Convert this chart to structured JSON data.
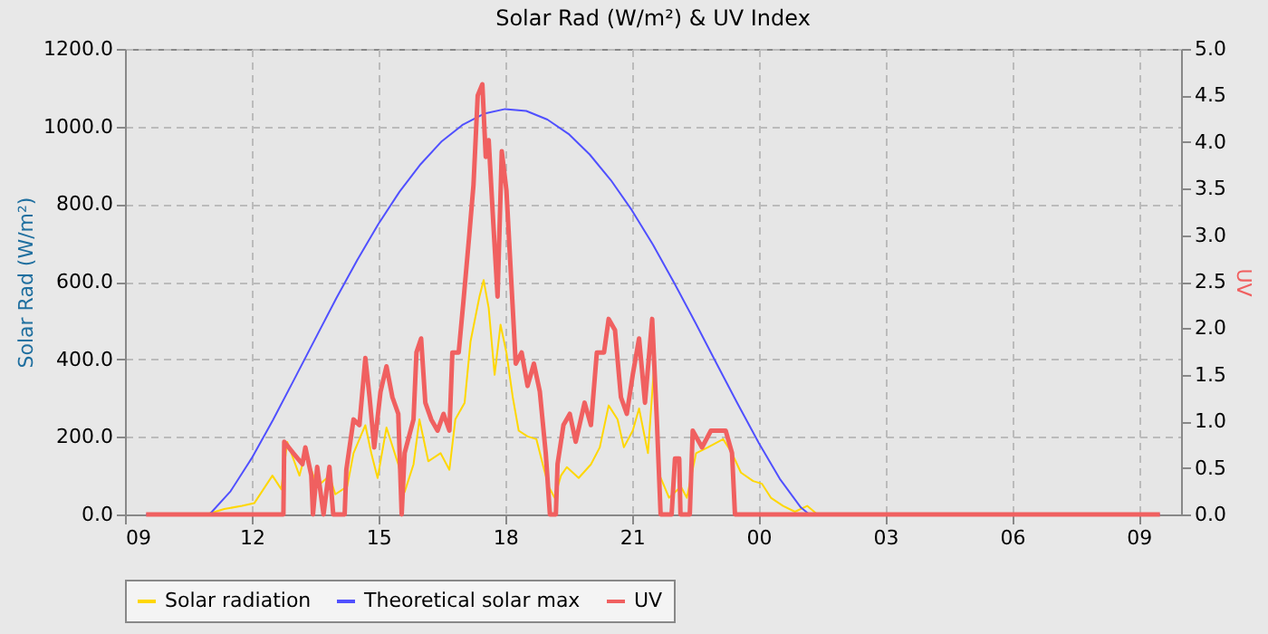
{
  "chart_data": {
    "type": "line",
    "title": "Solar Rad (W/m²) &  UV Index",
    "ylabel": "Solar Rad (W/m²)",
    "y2label": "UV",
    "xlim": [
      9,
      34
    ],
    "xticks": [
      {
        "value": 9,
        "label": "09"
      },
      {
        "value": 12,
        "label": "12"
      },
      {
        "value": 15,
        "label": "15"
      },
      {
        "value": 18,
        "label": "18"
      },
      {
        "value": 21,
        "label": "21"
      },
      {
        "value": 24,
        "label": "00"
      },
      {
        "value": 27,
        "label": "03"
      },
      {
        "value": 30,
        "label": "06"
      },
      {
        "value": 33,
        "label": "09"
      }
    ],
    "ylim": [
      0,
      1200
    ],
    "yticks": [
      {
        "value": 0,
        "label": "0.0"
      },
      {
        "value": 200,
        "label": "200.0"
      },
      {
        "value": 400,
        "label": "400.0"
      },
      {
        "value": 600,
        "label": "600.0"
      },
      {
        "value": 800,
        "label": "800.0"
      },
      {
        "value": 1000,
        "label": "1000.0"
      },
      {
        "value": 1200,
        "label": "1200.0"
      }
    ],
    "y2lim": [
      0,
      5
    ],
    "y2ticks": [
      {
        "value": 0,
        "label": "0.0"
      },
      {
        "value": 0.5,
        "label": "0.5"
      },
      {
        "value": 1,
        "label": "1.0"
      },
      {
        "value": 1.5,
        "label": "1.5"
      },
      {
        "value": 2,
        "label": "2.0"
      },
      {
        "value": 2.5,
        "label": "2.5"
      },
      {
        "value": 3,
        "label": "3.0"
      },
      {
        "value": 3.5,
        "label": "3.5"
      },
      {
        "value": 4,
        "label": "4.0"
      },
      {
        "value": 4.5,
        "label": "4.5"
      },
      {
        "value": 5,
        "label": "5.0"
      }
    ],
    "grid": true,
    "legend": "bottom",
    "series": [
      {
        "name": "Solar radiation",
        "color": "#ffd700",
        "x": [
          10.92,
          11.35,
          11.77,
          12.06,
          12.49,
          12.7,
          12.84,
          13.13,
          13.27,
          13.55,
          13.84,
          13.98,
          14.26,
          14.41,
          14.69,
          14.83,
          14.98,
          15.19,
          15.47,
          15.62,
          15.83,
          15.97,
          16.18,
          16.47,
          16.68,
          16.82,
          17.04,
          17.18,
          17.39,
          17.49,
          17.61,
          17.75,
          17.89,
          18.03,
          18.18,
          18.32,
          18.53,
          18.74,
          18.89,
          19.03,
          19.17,
          19.32,
          19.46,
          19.74,
          20.03,
          20.24,
          20.45,
          20.66,
          20.81,
          21.02,
          21.17,
          21.38,
          21.52,
          21.66,
          21.88,
          22.16,
          22.3,
          22.52,
          22.8,
          23.16,
          23.37,
          23.58,
          23.87,
          24.08,
          24.29,
          24.58,
          24.86,
          25.15,
          25.36,
          25.4
        ],
        "values": [
          0,
          14,
          22,
          29,
          100,
          65,
          187,
          100,
          158,
          72,
          100,
          52,
          72,
          158,
          230,
          158,
          94,
          224,
          129,
          58,
          129,
          245,
          137,
          158,
          115,
          245,
          288,
          446,
          561,
          604,
          532,
          360,
          489,
          417,
          302,
          216,
          201,
          194,
          129,
          72,
          43,
          100,
          122,
          94,
          129,
          173,
          281,
          245,
          173,
          216,
          273,
          158,
          374,
          100,
          43,
          72,
          43,
          158,
          173,
          194,
          158,
          108,
          86,
          79,
          43,
          22,
          7,
          22,
          3,
          0
        ]
      },
      {
        "name": "Theoretical solar max",
        "color": "#5050ff",
        "x": [
          9.5,
          11,
          11.5,
          12,
          12.5,
          13,
          13.5,
          14,
          14.5,
          15,
          15.5,
          16,
          16.5,
          17,
          17.5,
          18,
          18.5,
          19,
          19.5,
          20,
          20.5,
          21,
          21.5,
          22,
          22.5,
          23,
          23.5,
          24,
          24.5,
          25,
          25.2,
          33.5
        ],
        "values": [
          0,
          0,
          60,
          145,
          243,
          347,
          452,
          557,
          656,
          749,
          832,
          903,
          962,
          1005,
          1033,
          1045,
          1040,
          1018,
          981,
          928,
          862,
          784,
          695,
          597,
          495,
          390,
          286,
          185,
          92,
          18,
          0,
          0
        ]
      },
      {
        "name": "UV",
        "color": "#f06060",
        "axis": "y2",
        "x": [
          9.5,
          12.75,
          12.77,
          12.98,
          13.2,
          13.27,
          13.41,
          13.45,
          13.55,
          13.7,
          13.84,
          13.93,
          14.2,
          14.24,
          14.41,
          14.55,
          14.69,
          14.79,
          14.9,
          15.05,
          15.19,
          15.33,
          15.47,
          15.55,
          15.62,
          15.83,
          15.9,
          16.01,
          16.11,
          16.25,
          16.4,
          16.54,
          16.68,
          16.75,
          16.9,
          17.01,
          17.15,
          17.25,
          17.35,
          17.46,
          17.54,
          17.61,
          17.72,
          17.82,
          17.92,
          18.03,
          18.15,
          18.25,
          18.39,
          18.53,
          18.68,
          18.82,
          18.96,
          19.06,
          19.2,
          19.24,
          19.38,
          19.53,
          19.67,
          19.88,
          20.03,
          20.17,
          20.34,
          20.45,
          20.6,
          20.74,
          20.88,
          21.02,
          21.17,
          21.31,
          21.48,
          21.59,
          21.68,
          21.94,
          22.02,
          22.12,
          22.15,
          22.37,
          22.44,
          22.66,
          22.87,
          23.22,
          23.37,
          23.44,
          33.5
        ],
        "values": [
          0,
          0,
          0.78,
          0.66,
          0.54,
          0.72,
          0.42,
          0,
          0.51,
          0,
          0.51,
          0,
          0,
          0.48,
          1.02,
          0.96,
          1.68,
          1.26,
          0.72,
          1.32,
          1.59,
          1.26,
          1.08,
          0,
          0.66,
          1.02,
          1.74,
          1.89,
          1.2,
          1.02,
          0.9,
          1.08,
          0.9,
          1.74,
          1.74,
          2.28,
          3.0,
          3.54,
          4.5,
          4.62,
          3.84,
          4.02,
          3.12,
          2.34,
          3.9,
          3.48,
          2.46,
          1.62,
          1.74,
          1.38,
          1.62,
          1.32,
          0.66,
          0,
          0,
          0.54,
          0.96,
          1.08,
          0.78,
          1.2,
          0.96,
          1.74,
          1.74,
          2.1,
          1.98,
          1.26,
          1.08,
          1.5,
          1.89,
          1.2,
          2.1,
          1.02,
          0,
          0,
          0.6,
          0.6,
          0,
          0,
          0.9,
          0.72,
          0.9,
          0.9,
          0.66,
          0,
          0
        ]
      }
    ]
  }
}
